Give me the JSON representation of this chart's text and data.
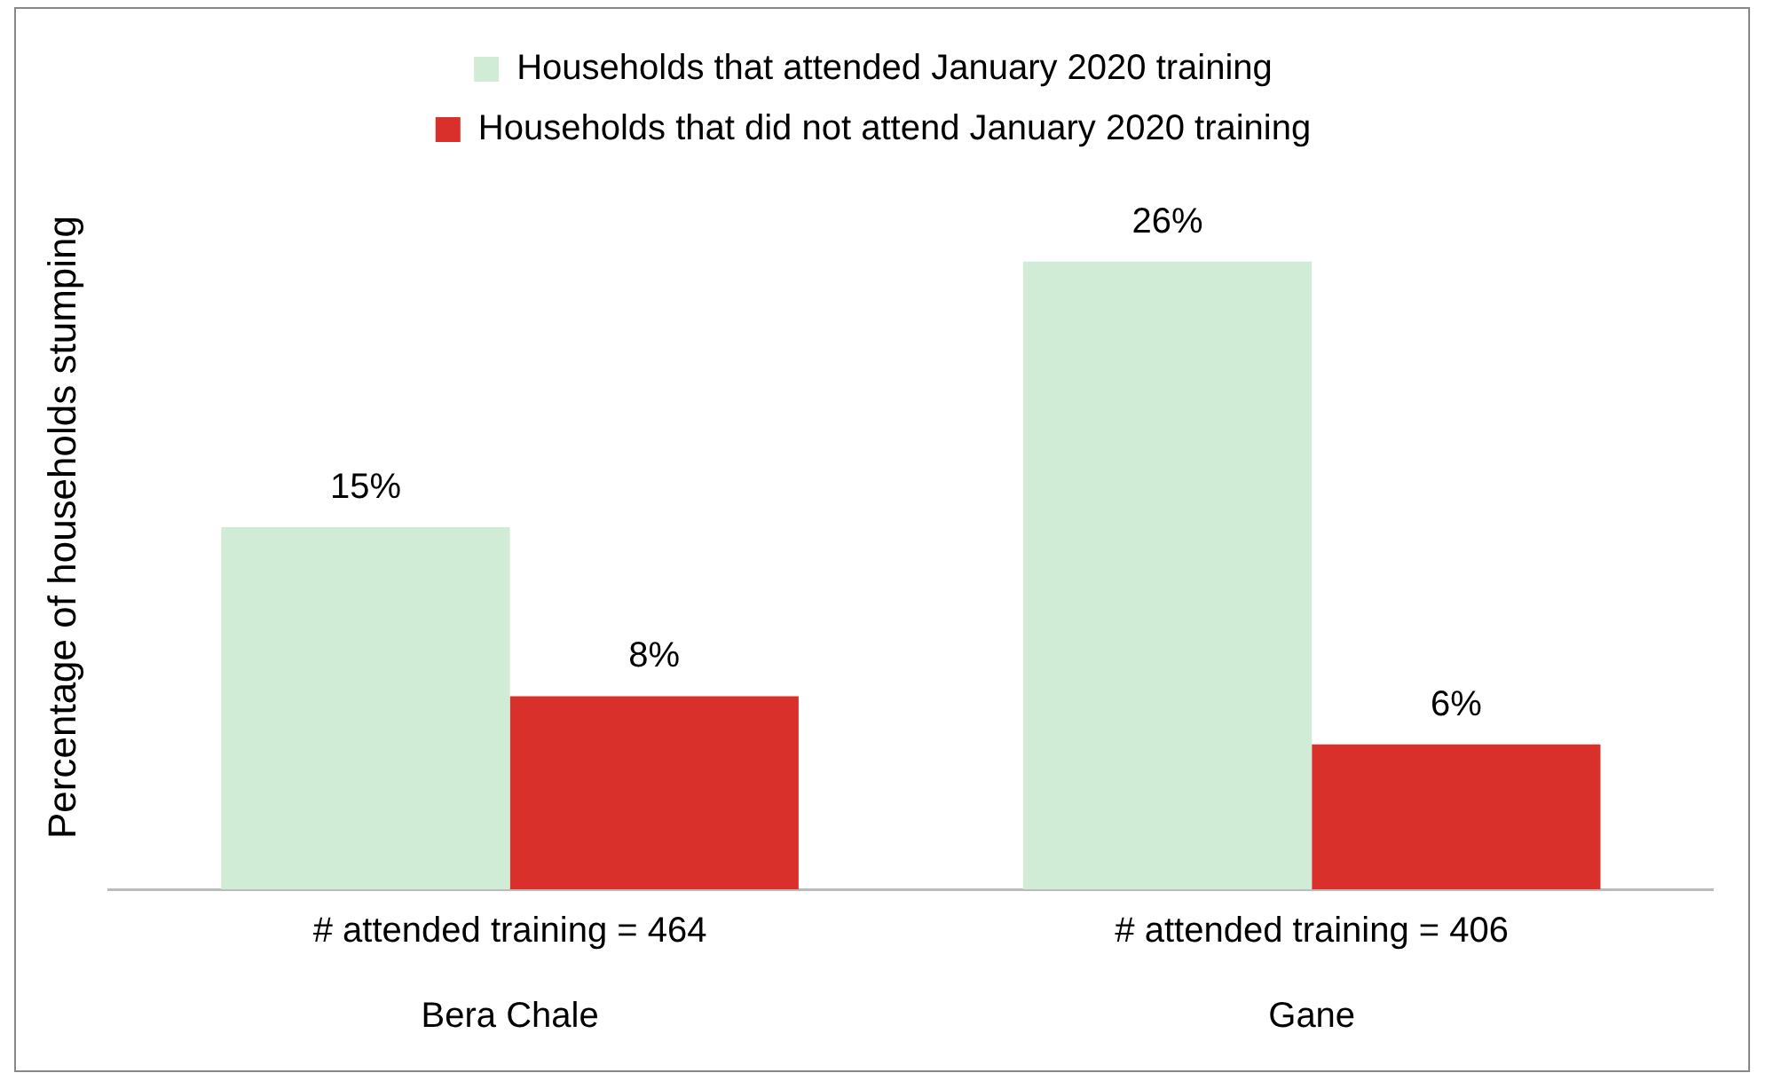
{
  "chart_data": {
    "type": "bar",
    "ylabel": "Percentage of households stumping",
    "categories": [
      "# attended training = 464\n\nBera Chale",
      "# attended training = 406\n\nGane"
    ],
    "series": [
      {
        "name": "Households that attended January 2020 training",
        "color": "#d0ecd6",
        "values": [
          15,
          26
        ],
        "value_labels": [
          "15%",
          "26%"
        ]
      },
      {
        "name": "Households that did not attend January 2020 training",
        "color": "#da302b",
        "values": [
          8,
          6
        ],
        "value_labels": [
          "8%",
          "6%"
        ]
      }
    ],
    "legend": "top",
    "grid": false
  }
}
